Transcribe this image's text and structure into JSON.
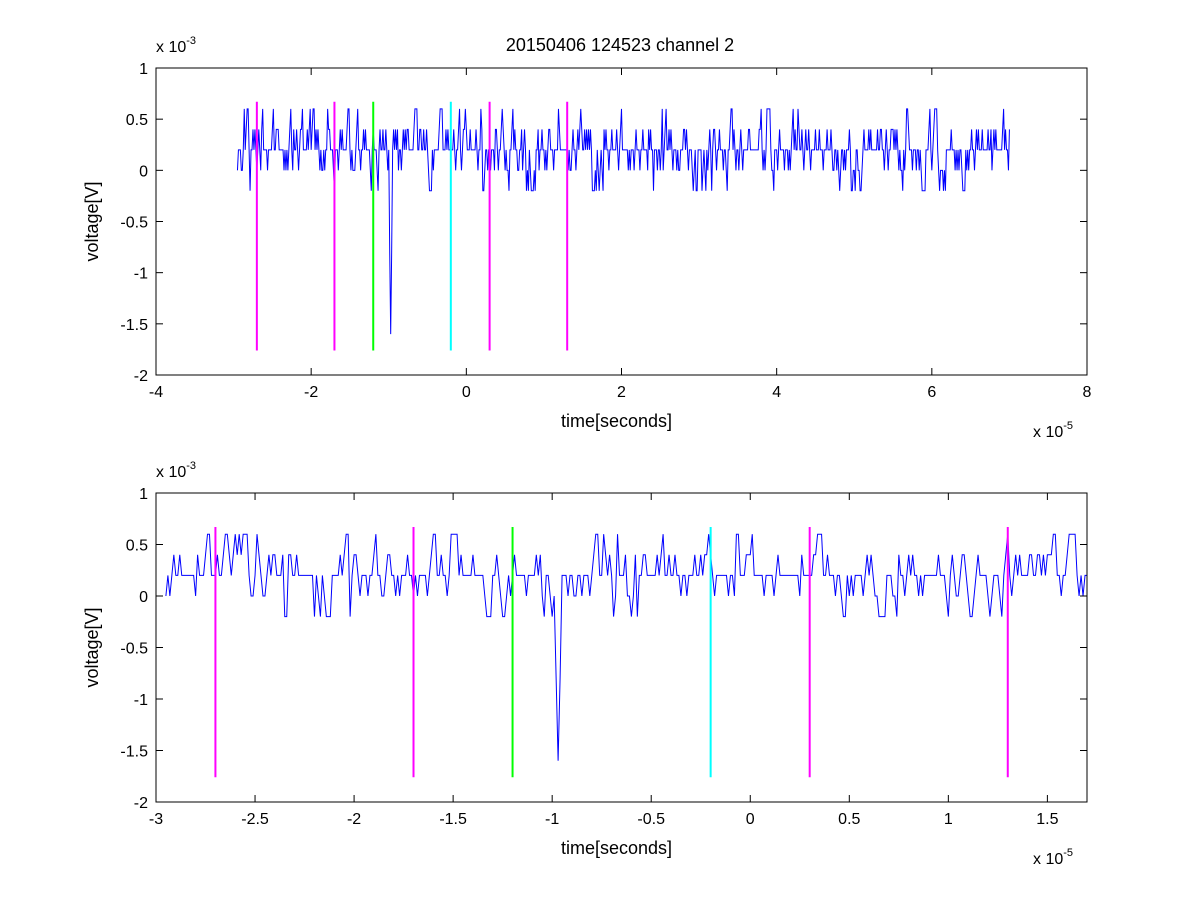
{
  "figure": {
    "title": "20150406 124523 channel 2",
    "colors": {
      "signal": "#0000ff",
      "magenta": "#ff00ff",
      "green": "#00ff00",
      "cyan": "#00ffff",
      "axes": "#000000"
    }
  },
  "chart_data": [
    {
      "type": "line",
      "title": "20150406 124523 channel 2",
      "xlabel": "time[seconds]",
      "ylabel": "voltage[V]",
      "xlim": [
        -4e-05,
        8e-05
      ],
      "ylim": [
        -0.002,
        0.001
      ],
      "x_ticks": [
        -4e-05,
        -2e-05,
        0,
        2e-05,
        4e-05,
        6e-05,
        8e-05
      ],
      "x_tick_labels": [
        "-4",
        "-2",
        "0",
        "2",
        "4",
        "6",
        "8"
      ],
      "y_ticks": [
        -0.002,
        -0.0015,
        -0.001,
        -0.0005,
        0,
        0.0005,
        0.001
      ],
      "y_tick_labels": [
        "-2",
        "-1.5",
        "-1",
        "-0.5",
        "0",
        "0.5",
        "1"
      ],
      "x_multiplier": {
        "base": "x 10",
        "exponent": "-5"
      },
      "y_multiplier": {
        "base": "x 10",
        "exponent": "-3"
      },
      "grid": false,
      "series": [
        {
          "color": "#0000ff",
          "x_range": [
            -2.95e-05,
            7e-05
          ],
          "baseline": 0.0002,
          "quantum": 0.0002,
          "noise_min": -0.0002,
          "noise_max": 0.0006,
          "spike": {
            "x": -9.7e-06,
            "y": -0.0016
          },
          "ending_value": 0.0004
        }
      ],
      "markers": [
        {
          "x": -2.7e-05,
          "color": "#ff00ff",
          "ymin": -0.00176,
          "ymax": 0.00067
        },
        {
          "x": -1.7e-05,
          "color": "#ff00ff",
          "ymin": -0.00176,
          "ymax": 0.00067
        },
        {
          "x": -1.2e-05,
          "color": "#00ff00",
          "ymin": -0.00176,
          "ymax": 0.00067
        },
        {
          "x": -2e-06,
          "color": "#00ffff",
          "ymin": -0.00176,
          "ymax": 0.00067
        },
        {
          "x": 3e-06,
          "color": "#ff00ff",
          "ymin": -0.00176,
          "ymax": 0.00067
        },
        {
          "x": 1.3e-05,
          "color": "#ff00ff",
          "ymin": -0.00176,
          "ymax": 0.00067
        }
      ]
    },
    {
      "type": "line",
      "xlabel": "time[seconds]",
      "ylabel": "voltage[V]",
      "xlim": [
        -3e-05,
        1.7e-05
      ],
      "ylim": [
        -0.002,
        0.001
      ],
      "x_ticks": [
        -3e-05,
        -2.5e-05,
        -2e-05,
        -1.5e-05,
        -1e-05,
        -5e-06,
        0,
        5e-06,
        1e-05,
        1.5e-05
      ],
      "x_tick_labels": [
        "-3",
        "-2.5",
        "-2",
        "-1.5",
        "-1",
        "-0.5",
        "0",
        "0.5",
        "1",
        "1.5"
      ],
      "y_ticks": [
        -0.002,
        -0.0015,
        -0.001,
        -0.0005,
        0,
        0.0005,
        0.001
      ],
      "y_tick_labels": [
        "-2",
        "-1.5",
        "-1",
        "-0.5",
        "0",
        "0.5",
        "1"
      ],
      "x_multiplier": {
        "base": "x 10",
        "exponent": "-5"
      },
      "y_multiplier": {
        "base": "x 10",
        "exponent": "-3"
      },
      "grid": false,
      "series": [
        {
          "color": "#0000ff",
          "x_range": [
            -2.95e-05,
            1.7e-05
          ],
          "baseline": 0.0002,
          "quantum": 0.0002,
          "noise_min": -0.0002,
          "noise_max": 0.0006,
          "spike": {
            "x": -9.7e-06,
            "y": -0.0016
          },
          "ending_value": 0.0002
        }
      ],
      "markers": [
        {
          "x": -2.7e-05,
          "color": "#ff00ff",
          "ymin": -0.00176,
          "ymax": 0.00067
        },
        {
          "x": -1.7e-05,
          "color": "#ff00ff",
          "ymin": -0.00176,
          "ymax": 0.00067
        },
        {
          "x": -1.2e-05,
          "color": "#00ff00",
          "ymin": -0.00176,
          "ymax": 0.00067
        },
        {
          "x": -2e-06,
          "color": "#00ffff",
          "ymin": -0.00176,
          "ymax": 0.00067
        },
        {
          "x": 3e-06,
          "color": "#ff00ff",
          "ymin": -0.00176,
          "ymax": 0.00067
        },
        {
          "x": 1.3e-05,
          "color": "#ff00ff",
          "ymin": -0.00176,
          "ymax": 0.00067
        }
      ]
    }
  ]
}
